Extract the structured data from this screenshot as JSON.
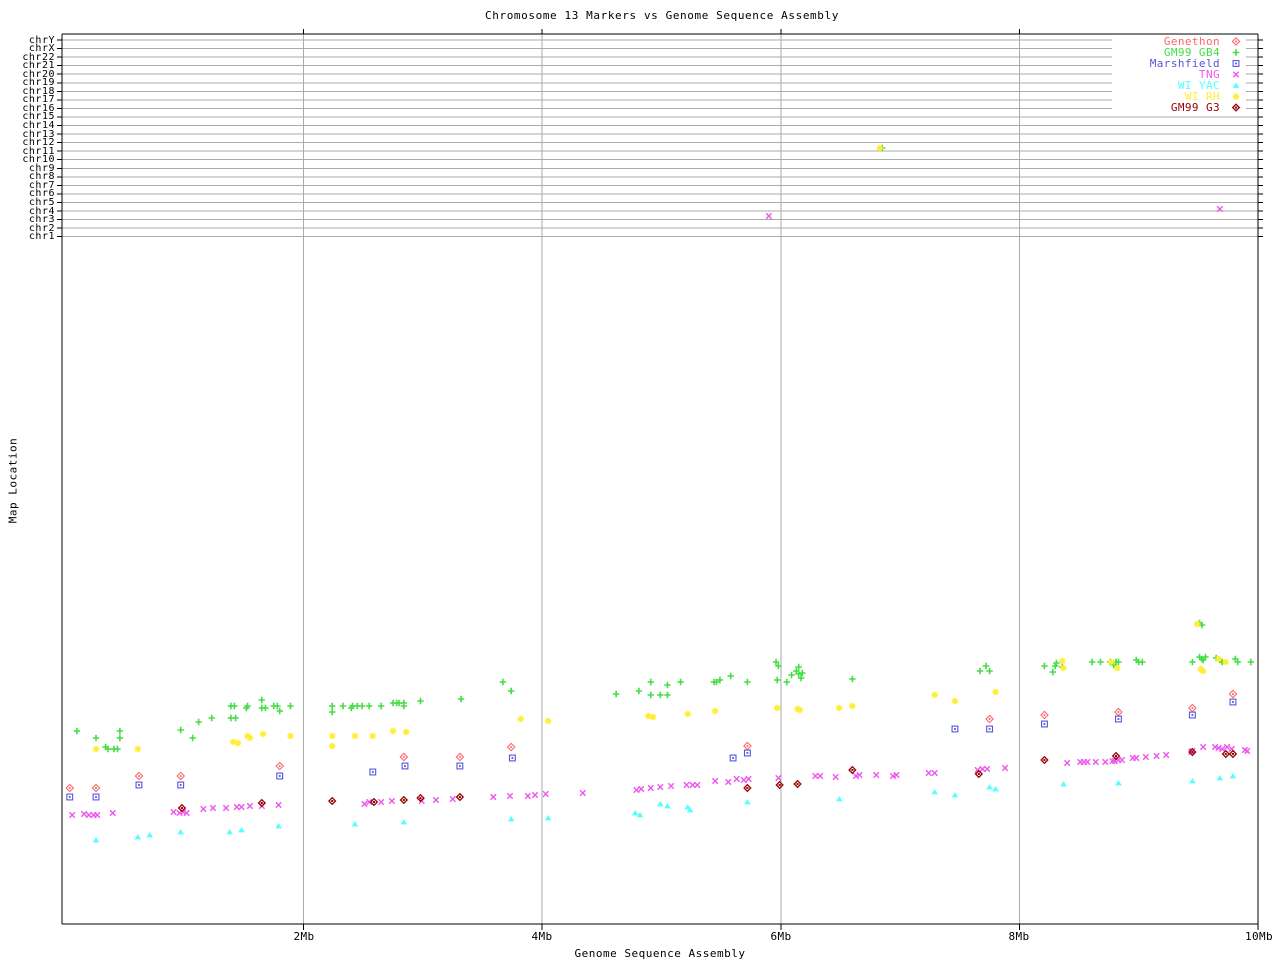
{
  "chart_data": {
    "type": "scatter",
    "title": "Chromosome 13 Markers vs Genome Sequence Assembly",
    "xlabel": "Genome Sequence Assembly",
    "ylabel": "Map Location",
    "x_axis": {
      "unit": "Mb",
      "range_mb": [
        0,
        10
      ],
      "grid": true
    },
    "x_ticks": [
      {
        "mb": 2,
        "label": "2Mb"
      },
      {
        "mb": 4,
        "label": "4Mb"
      },
      {
        "mb": 6,
        "label": "6Mb"
      },
      {
        "mb": 8,
        "label": "8Mb"
      },
      {
        "mb": 10,
        "label": "10Mb"
      }
    ],
    "y_axis_chromosome_bands": [
      "chrY",
      "chrX",
      "chr22",
      "chr21",
      "chr20",
      "chr19",
      "chr18",
      "chr17",
      "chr16",
      "chr15",
      "chr14",
      "chr13",
      "chr12",
      "chr11",
      "chr10",
      "chr9",
      "chr8",
      "chr7",
      "chr6",
      "chr5",
      "chr4",
      "chr3",
      "chr2",
      "chr1"
    ],
    "legend_position": "top-right",
    "grid_color": "#aaaaaa",
    "axis_color": "#000000",
    "series": [
      {
        "name": "Genethon",
        "marker": "diamond-dot",
        "color": "#ff6666",
        "points_mb_ypx": [
          [
            0.04,
            788
          ],
          [
            0.26,
            788
          ],
          [
            0.62,
            776
          ],
          [
            0.97,
            776
          ],
          [
            1.8,
            766
          ],
          [
            2.84,
            757
          ],
          [
            3.31,
            757
          ],
          [
            3.74,
            747
          ],
          [
            5.72,
            746
          ],
          [
            7.75,
            719
          ],
          [
            8.21,
            715
          ],
          [
            8.83,
            712
          ],
          [
            9.45,
            708
          ],
          [
            9.79,
            694
          ]
        ]
      },
      {
        "name": "GM99 GB4",
        "marker": "plus",
        "color": "#44dd44",
        "points_mb_ypx": [
          [
            0.1,
            731
          ],
          [
            0.26,
            738
          ],
          [
            0.34,
            747
          ],
          [
            0.36,
            749
          ],
          [
            0.41,
            749
          ],
          [
            0.44,
            749
          ],
          [
            0.46,
            731
          ],
          [
            0.46,
            738
          ],
          [
            0.97,
            730
          ],
          [
            1.07,
            738
          ],
          [
            1.12,
            722
          ],
          [
            1.23,
            718
          ],
          [
            1.39,
            706
          ],
          [
            1.42,
            706
          ],
          [
            1.39,
            718
          ],
          [
            1.43,
            718
          ],
          [
            1.52,
            708
          ],
          [
            1.53,
            706
          ],
          [
            1.65,
            700
          ],
          [
            1.65,
            708
          ],
          [
            1.68,
            708
          ],
          [
            1.75,
            706
          ],
          [
            1.78,
            706
          ],
          [
            1.8,
            711
          ],
          [
            1.89,
            706
          ],
          [
            2.24,
            706
          ],
          [
            2.24,
            712
          ],
          [
            2.33,
            706
          ],
          [
            2.4,
            708
          ],
          [
            2.41,
            706
          ],
          [
            2.45,
            706
          ],
          [
            2.49,
            706
          ],
          [
            2.55,
            706
          ],
          [
            2.65,
            706
          ],
          [
            2.75,
            703
          ],
          [
            2.78,
            703
          ],
          [
            2.8,
            703
          ],
          [
            2.84,
            703
          ],
          [
            2.84,
            706
          ],
          [
            2.98,
            701
          ],
          [
            3.32,
            699
          ],
          [
            3.67,
            682
          ],
          [
            3.74,
            691
          ],
          [
            4.62,
            694
          ],
          [
            4.81,
            691
          ],
          [
            4.91,
            682
          ],
          [
            4.91,
            695
          ],
          [
            4.99,
            695
          ],
          [
            5.05,
            685
          ],
          [
            5.05,
            695
          ],
          [
            5.16,
            682
          ],
          [
            5.44,
            682
          ],
          [
            5.46,
            682
          ],
          [
            5.49,
            680
          ],
          [
            5.58,
            676
          ],
          [
            5.72,
            682
          ],
          [
            5.96,
            662
          ],
          [
            5.97,
            680
          ],
          [
            5.98,
            666
          ],
          [
            6.05,
            682
          ],
          [
            6.09,
            675
          ],
          [
            6.13,
            671
          ],
          [
            6.15,
            667
          ],
          [
            6.15,
            674
          ],
          [
            6.17,
            678
          ],
          [
            6.18,
            673
          ],
          [
            6.6,
            679
          ],
          [
            6.85,
            148
          ],
          [
            7.67,
            671
          ],
          [
            7.72,
            666
          ],
          [
            7.75,
            671
          ],
          [
            8.21,
            666
          ],
          [
            8.28,
            672
          ],
          [
            8.3,
            666
          ],
          [
            8.31,
            663
          ],
          [
            8.36,
            667
          ],
          [
            8.61,
            662
          ],
          [
            8.68,
            662
          ],
          [
            8.76,
            662
          ],
          [
            8.79,
            665
          ],
          [
            8.81,
            662
          ],
          [
            8.83,
            662
          ],
          [
            8.98,
            660
          ],
          [
            9.0,
            662
          ],
          [
            9.03,
            662
          ],
          [
            9.45,
            662
          ],
          [
            9.51,
            623
          ],
          [
            9.51,
            657
          ],
          [
            9.53,
            625
          ],
          [
            9.53,
            659
          ],
          [
            9.54,
            660
          ],
          [
            9.56,
            657
          ],
          [
            9.65,
            658
          ],
          [
            9.68,
            660
          ],
          [
            9.7,
            662
          ],
          [
            9.81,
            659
          ],
          [
            9.83,
            662
          ],
          [
            9.94,
            662
          ]
        ]
      },
      {
        "name": "Marshfield",
        "marker": "square-dot",
        "color": "#5555dd",
        "points_mb_ypx": [
          [
            0.04,
            797
          ],
          [
            0.26,
            797
          ],
          [
            0.62,
            785
          ],
          [
            0.97,
            785
          ],
          [
            1.8,
            776
          ],
          [
            2.58,
            772
          ],
          [
            2.85,
            766
          ],
          [
            3.31,
            766
          ],
          [
            3.75,
            758
          ],
          [
            5.6,
            758
          ],
          [
            5.72,
            753
          ],
          [
            7.46,
            729
          ],
          [
            7.75,
            729
          ],
          [
            8.21,
            724
          ],
          [
            8.83,
            719
          ],
          [
            9.45,
            715
          ],
          [
            9.79,
            702
          ]
        ]
      },
      {
        "name": "TNG",
        "marker": "cross",
        "color": "#ee55ee",
        "points_mb_ypx": [
          [
            0.06,
            815
          ],
          [
            0.16,
            814
          ],
          [
            0.2,
            815
          ],
          [
            0.24,
            815
          ],
          [
            0.27,
            815
          ],
          [
            0.4,
            813
          ],
          [
            0.91,
            812
          ],
          [
            0.96,
            813
          ],
          [
            0.99,
            812
          ],
          [
            1.02,
            813
          ],
          [
            1.16,
            809
          ],
          [
            1.24,
            808
          ],
          [
            1.35,
            808
          ],
          [
            1.44,
            807
          ],
          [
            1.48,
            807
          ],
          [
            1.55,
            806
          ],
          [
            1.65,
            806
          ],
          [
            1.79,
            805
          ],
          [
            2.51,
            804
          ],
          [
            2.55,
            802
          ],
          [
            2.65,
            802
          ],
          [
            2.74,
            801
          ],
          [
            2.99,
            801
          ],
          [
            3.11,
            800
          ],
          [
            3.25,
            799
          ],
          [
            3.59,
            797
          ],
          [
            3.73,
            796
          ],
          [
            3.88,
            796
          ],
          [
            3.94,
            795
          ],
          [
            4.03,
            794
          ],
          [
            4.34,
            793
          ],
          [
            4.79,
            790
          ],
          [
            4.83,
            789
          ],
          [
            4.91,
            788
          ],
          [
            4.99,
            787
          ],
          [
            5.08,
            786
          ],
          [
            5.21,
            785
          ],
          [
            5.26,
            785
          ],
          [
            5.3,
            785
          ],
          [
            5.45,
            781
          ],
          [
            5.56,
            782
          ],
          [
            5.63,
            779
          ],
          [
            5.69,
            780
          ],
          [
            5.73,
            779
          ],
          [
            5.9,
            216
          ],
          [
            5.98,
            778
          ],
          [
            6.29,
            776
          ],
          [
            6.33,
            776
          ],
          [
            6.46,
            777
          ],
          [
            6.63,
            776
          ],
          [
            6.66,
            775
          ],
          [
            6.8,
            775
          ],
          [
            6.94,
            776
          ],
          [
            6.97,
            775
          ],
          [
            7.24,
            773
          ],
          [
            7.29,
            773
          ],
          [
            7.65,
            770
          ],
          [
            7.69,
            769
          ],
          [
            7.73,
            769
          ],
          [
            7.88,
            768
          ],
          [
            8.4,
            763
          ],
          [
            8.51,
            762
          ],
          [
            8.54,
            762
          ],
          [
            8.57,
            762
          ],
          [
            8.64,
            762
          ],
          [
            8.72,
            762
          ],
          [
            8.78,
            761
          ],
          [
            8.8,
            761
          ],
          [
            8.83,
            760
          ],
          [
            8.86,
            760
          ],
          [
            8.95,
            758
          ],
          [
            8.98,
            758
          ],
          [
            9.06,
            757
          ],
          [
            9.15,
            756
          ],
          [
            9.23,
            755
          ],
          [
            9.44,
            752
          ],
          [
            9.45,
            751
          ],
          [
            9.54,
            747
          ],
          [
            9.64,
            747
          ],
          [
            9.67,
            748
          ],
          [
            9.68,
            209
          ],
          [
            9.7,
            749
          ],
          [
            9.74,
            747
          ],
          [
            9.78,
            749
          ],
          [
            9.89,
            750
          ],
          [
            9.91,
            751
          ]
        ]
      },
      {
        "name": "WI YAC",
        "marker": "triangle",
        "color": "#55ffff",
        "points_mb_ypx": [
          [
            0.26,
            840
          ],
          [
            0.61,
            837
          ],
          [
            0.71,
            835
          ],
          [
            0.97,
            832
          ],
          [
            1.38,
            832
          ],
          [
            1.48,
            830
          ],
          [
            1.79,
            826
          ],
          [
            2.43,
            824
          ],
          [
            2.84,
            822
          ],
          [
            3.74,
            819
          ],
          [
            4.05,
            818
          ],
          [
            4.78,
            813
          ],
          [
            4.82,
            815
          ],
          [
            4.99,
            804
          ],
          [
            5.05,
            806
          ],
          [
            5.22,
            807
          ],
          [
            5.24,
            810
          ],
          [
            5.72,
            802
          ],
          [
            6.49,
            799
          ],
          [
            7.29,
            792
          ],
          [
            7.46,
            795
          ],
          [
            7.75,
            787
          ],
          [
            7.8,
            789
          ],
          [
            8.37,
            784
          ],
          [
            8.83,
            783
          ],
          [
            9.45,
            781
          ],
          [
            9.68,
            778
          ],
          [
            9.79,
            776
          ]
        ]
      },
      {
        "name": "WI RH",
        "marker": "star",
        "color": "#ffee33",
        "points_mb_ypx": [
          [
            0.26,
            749
          ],
          [
            0.61,
            749
          ],
          [
            1.41,
            742
          ],
          [
            1.45,
            743
          ],
          [
            1.53,
            736
          ],
          [
            1.55,
            738
          ],
          [
            1.66,
            734
          ],
          [
            1.89,
            736
          ],
          [
            2.24,
            736
          ],
          [
            2.24,
            746
          ],
          [
            2.43,
            736
          ],
          [
            2.58,
            736
          ],
          [
            2.75,
            731
          ],
          [
            2.86,
            732
          ],
          [
            3.82,
            719
          ],
          [
            4.05,
            721
          ],
          [
            4.89,
            716
          ],
          [
            4.93,
            717
          ],
          [
            5.22,
            714
          ],
          [
            5.45,
            711
          ],
          [
            5.97,
            708
          ],
          [
            6.14,
            709
          ],
          [
            6.16,
            710
          ],
          [
            6.49,
            708
          ],
          [
            6.6,
            706
          ],
          [
            6.83,
            148
          ],
          [
            7.29,
            695
          ],
          [
            7.46,
            701
          ],
          [
            7.8,
            692
          ],
          [
            8.36,
            661
          ],
          [
            8.37,
            668
          ],
          [
            8.77,
            662
          ],
          [
            8.82,
            668
          ],
          [
            9.49,
            624
          ],
          [
            9.52,
            669
          ],
          [
            9.54,
            671
          ],
          [
            9.67,
            659
          ],
          [
            9.73,
            662
          ]
        ]
      },
      {
        "name": "GM99 G3",
        "marker": "diamond-fill",
        "color": "#990000",
        "points_mb_ypx": [
          [
            0.98,
            808
          ],
          [
            1.65,
            803
          ],
          [
            2.24,
            801
          ],
          [
            2.59,
            802
          ],
          [
            2.84,
            800
          ],
          [
            2.98,
            798
          ],
          [
            3.31,
            797
          ],
          [
            5.72,
            788
          ],
          [
            5.99,
            785
          ],
          [
            6.14,
            784
          ],
          [
            6.6,
            770
          ],
          [
            7.66,
            774
          ],
          [
            8.21,
            760
          ],
          [
            8.81,
            756
          ],
          [
            9.45,
            752
          ],
          [
            9.73,
            754
          ],
          [
            9.79,
            754
          ]
        ]
      }
    ]
  }
}
